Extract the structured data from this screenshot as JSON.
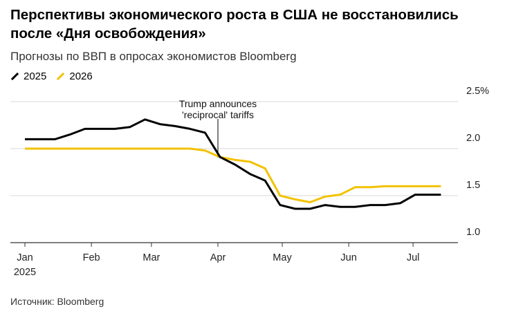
{
  "title": "Перспективы экономического роста в США не восстановились после «Дня освобождения»",
  "subtitle": "Прогнозы по ВВП в опросах экономистов Bloomberg",
  "source": "Источник: Bloomberg",
  "chart_data": {
    "type": "line",
    "title": "Перспективы экономического роста в США не восстановились после «Дня освобождения»",
    "subtitle": "Прогнозы по ВВП в опросах экономистов Bloomberg",
    "x": [
      "2025-01-01",
      "2025-01-08",
      "2025-01-15",
      "2025-01-22",
      "2025-01-29",
      "2025-02-05",
      "2025-02-12",
      "2025-02-19",
      "2025-02-26",
      "2025-03-05",
      "2025-03-12",
      "2025-03-19",
      "2025-03-26",
      "2025-04-02",
      "2025-04-09",
      "2025-04-16",
      "2025-04-23",
      "2025-04-30",
      "2025-05-07",
      "2025-05-14",
      "2025-05-21",
      "2025-05-28",
      "2025-06-04",
      "2025-06-11",
      "2025-06-18",
      "2025-06-25",
      "2025-07-02",
      "2025-07-09",
      "2025-07-14"
    ],
    "series": [
      {
        "name": "2025",
        "color": "#000000",
        "values": [
          2.1,
          2.1,
          2.1,
          2.15,
          2.21,
          2.21,
          2.21,
          2.23,
          2.31,
          2.26,
          2.24,
          2.21,
          2.17,
          1.91,
          1.83,
          1.73,
          1.66,
          1.4,
          1.36,
          1.36,
          1.4,
          1.38,
          1.38,
          1.4,
          1.4,
          1.42,
          1.51,
          1.51,
          1.51
        ]
      },
      {
        "name": "2026",
        "color": "#f2c200",
        "values": [
          2.0,
          2.0,
          2.0,
          2.0,
          2.0,
          2.0,
          2.0,
          2.0,
          2.0,
          2.0,
          2.0,
          2.0,
          1.98,
          1.91,
          1.88,
          1.86,
          1.79,
          1.5,
          1.46,
          1.43,
          1.49,
          1.51,
          1.59,
          1.59,
          1.6,
          1.6,
          1.6,
          1.6,
          1.6
        ]
      }
    ],
    "ylim": [
      1.0,
      2.5
    ],
    "yticks": [
      {
        "v": 2.5,
        "label": "2.5%"
      },
      {
        "v": 2.0,
        "label": "2.0"
      },
      {
        "v": 1.5,
        "label": "1.5"
      },
      {
        "v": 1.0,
        "label": "1.0"
      }
    ],
    "xticks": [
      {
        "date": "2025-01-01",
        "label": "Jan",
        "sub": "2025"
      },
      {
        "date": "2025-02-01",
        "label": "Feb"
      },
      {
        "date": "2025-03-01",
        "label": "Mar"
      },
      {
        "date": "2025-04-01",
        "label": "Apr"
      },
      {
        "date": "2025-05-01",
        "label": "May"
      },
      {
        "date": "2025-06-01",
        "label": "Jun"
      },
      {
        "date": "2025-07-01",
        "label": "Jul"
      }
    ],
    "annotation": {
      "date": "2025-04-01",
      "lines": [
        "Trump announces",
        "'reciprocal' tariffs"
      ]
    },
    "grid": true,
    "legend": "top-left"
  }
}
